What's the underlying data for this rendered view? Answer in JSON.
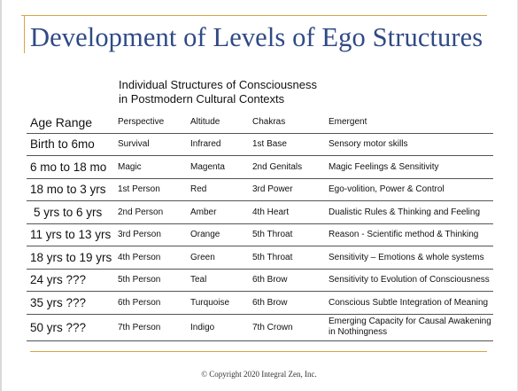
{
  "slide": {
    "title": "Development of Levels of Ego Structures",
    "subtitle_line1": "Individual Structures of Consciousness",
    "subtitle_line2": "in Postmodern Cultural Contexts",
    "footer": "© Copyright 2020 Integral Zen, Inc."
  },
  "table": {
    "headers": {
      "age": "Age Range",
      "perspective": "Perspective",
      "altitude": "Altitude",
      "chakras": "Chakras",
      "emergent": "Emergent"
    },
    "rows": [
      {
        "age": "Birth to 6mo",
        "perspective": "Survival",
        "altitude": "Infrared",
        "chakras": "1st Base",
        "emergent": "Sensory motor skills"
      },
      {
        "age": "6 mo to 18 mo",
        "perspective": "Magic",
        "altitude": "Magenta",
        "chakras": "2nd Genitals",
        "emergent": "Magic Feelings & Sensitivity"
      },
      {
        "age": "18 mo to 3 yrs",
        "perspective": "1st Person",
        "altitude": "Red",
        "chakras": "3rd Power",
        "emergent": "Ego-volition, Power & Control"
      },
      {
        "age": "5 yrs to 6 yrs",
        "perspective": "2nd Person",
        "altitude": "Amber",
        "chakras": "4th Heart",
        "emergent": "Dualistic Rules & Thinking and Feeling"
      },
      {
        "age": "11 yrs to 13 yrs",
        "perspective": "3rd Person",
        "altitude": "Orange",
        "chakras": "5th Throat",
        "emergent": "Reason - Scientific method & Thinking"
      },
      {
        "age": "18 yrs to 19 yrs",
        "perspective": "4th Person",
        "altitude": "Green",
        "chakras": "5th Throat",
        "emergent": "Sensitivity – Emotions &  whole systems"
      },
      {
        "age": "24 yrs ???",
        "perspective": "5th Person",
        "altitude": "Teal",
        "chakras": "6th Brow",
        "emergent": "Sensitivity to Evolution of Consciousness"
      },
      {
        "age": "35 yrs ???",
        "perspective": "6th Person",
        "altitude": "Turquoise",
        "chakras": "6th Brow",
        "emergent": "Conscious Subtle Integration of Meaning"
      },
      {
        "age": "50 yrs ???",
        "perspective": "7th Person",
        "altitude": "Indigo",
        "chakras": "7th Crown",
        "emergent": "Emerging Capacity for Causal Awakening in Nothingness"
      }
    ]
  },
  "colors": {
    "title": "#2f4a86",
    "accent_line": "#d9a441",
    "row_rule": "#555555"
  }
}
